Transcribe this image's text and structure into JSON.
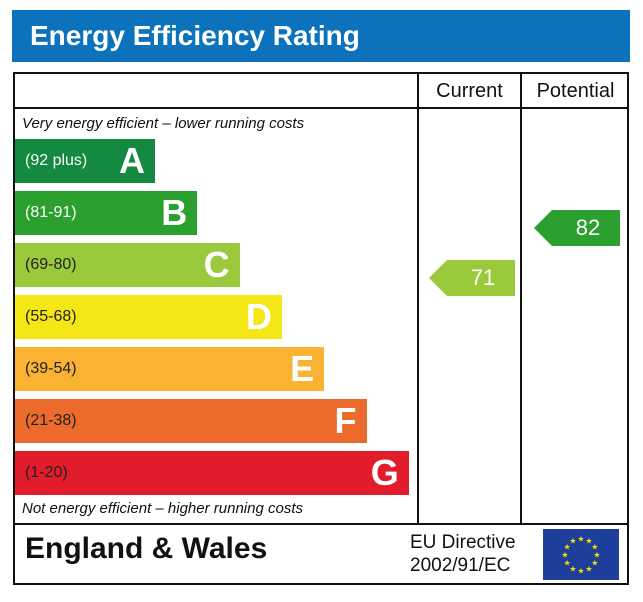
{
  "title": "Energy Efficiency Rating",
  "columns": {
    "current": "Current",
    "potential": "Potential"
  },
  "notes": {
    "top": "Very energy efficient – lower running costs",
    "bottom": "Not energy efficient – higher running costs"
  },
  "footer": {
    "region": "England & Wales",
    "directive_line1": "EU Directive",
    "directive_line2": "2002/91/EC",
    "flag_icon": "eu-flag-icon"
  },
  "chart_data": {
    "type": "bar",
    "bands": [
      {
        "letter": "A",
        "range": "(92 plus)",
        "color": "#138a3f"
      },
      {
        "letter": "B",
        "range": "(81-91)",
        "color": "#2ca02f"
      },
      {
        "letter": "C",
        "range": "(69-80)",
        "color": "#9bc93c"
      },
      {
        "letter": "D",
        "range": "(55-68)",
        "color": "#f5e616"
      },
      {
        "letter": "E",
        "range": "(39-54)",
        "color": "#f9b232"
      },
      {
        "letter": "F",
        "range": "(21-38)",
        "color": "#ec6a2b"
      },
      {
        "letter": "G",
        "range": "(1-20)",
        "color": "#e21d2b"
      }
    ],
    "current": {
      "value": 71,
      "band": "C",
      "color": "#9bc93c"
    },
    "potential": {
      "value": 82,
      "band": "B",
      "color": "#2ca02f"
    }
  }
}
